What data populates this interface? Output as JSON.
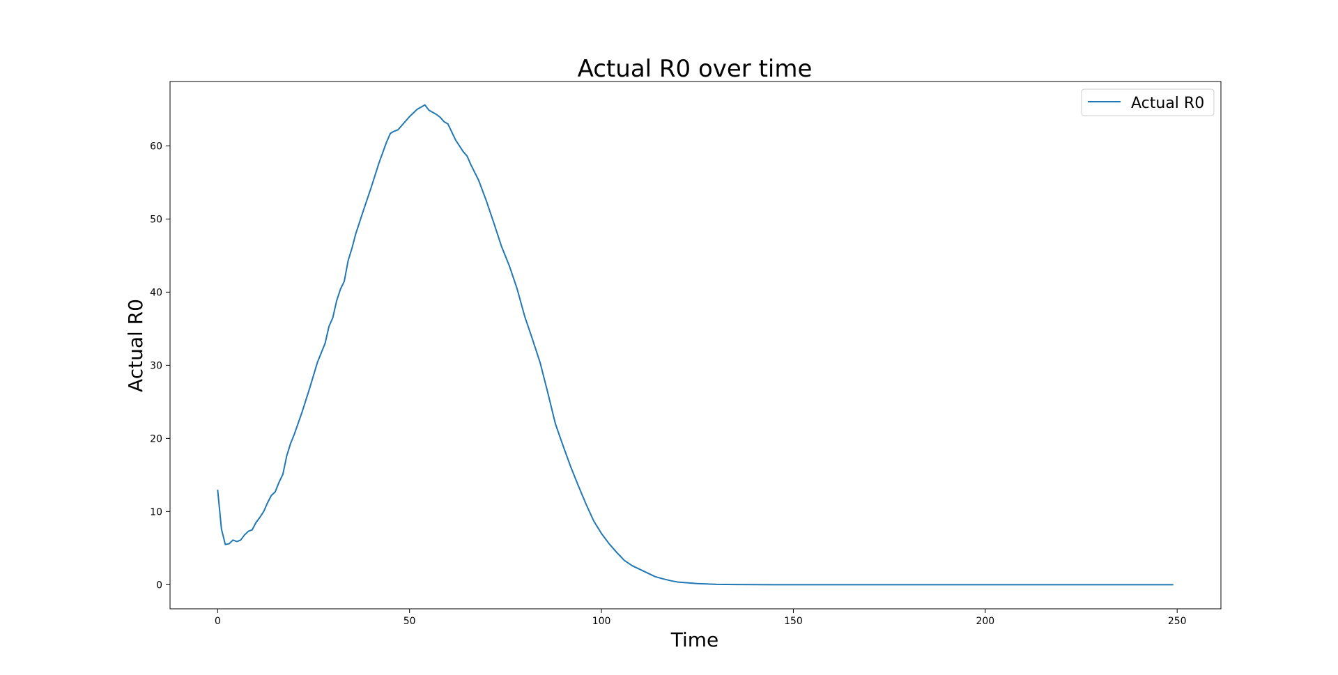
{
  "chart_data": {
    "type": "line",
    "title": "Actual R0 over time",
    "xlabel": "Time",
    "ylabel": "Actual R0",
    "xlim": [
      -12.4,
      261.4
    ],
    "ylim": [
      -3.3,
      68.8
    ],
    "xticks": [
      0,
      50,
      100,
      150,
      200,
      250
    ],
    "yticks": [
      0,
      10,
      20,
      30,
      40,
      50,
      60
    ],
    "grid": false,
    "legend_position": "top-right",
    "series": [
      {
        "name": "Actual R0",
        "color": "#1f77b4",
        "x": [
          0,
          1,
          2,
          3,
          4,
          5,
          6,
          7,
          8,
          9,
          10,
          11,
          12,
          13,
          14,
          15,
          16,
          17,
          18,
          19,
          20,
          22,
          24,
          26,
          28,
          29,
          30,
          31,
          32,
          33,
          34,
          35,
          36,
          38,
          40,
          42,
          44,
          45,
          46,
          47,
          48,
          49,
          50,
          52,
          54,
          55,
          56,
          57,
          58,
          59,
          60,
          62,
          64,
          65,
          66,
          68,
          70,
          72,
          74,
          76,
          78,
          80,
          82,
          84,
          86,
          88,
          90,
          92,
          94,
          96,
          98,
          100,
          102,
          104,
          106,
          108,
          110,
          112,
          114,
          116,
          118,
          120,
          125,
          130,
          135,
          140,
          145,
          150,
          160,
          170,
          180,
          190,
          200,
          210,
          220,
          230,
          240,
          249
        ],
        "y": [
          13.0,
          7.6,
          5.5,
          5.6,
          6.1,
          5.9,
          6.1,
          6.8,
          7.3,
          7.5,
          8.5,
          9.2,
          10.0,
          11.2,
          12.2,
          12.7,
          14.0,
          15.1,
          17.6,
          19.3,
          20.6,
          23.6,
          26.9,
          30.4,
          33.0,
          35.3,
          36.5,
          38.8,
          40.4,
          41.5,
          44.3,
          46.0,
          48.0,
          51.2,
          54.3,
          57.6,
          60.5,
          61.7,
          62.0,
          62.2,
          62.8,
          63.4,
          64.0,
          65.0,
          65.6,
          64.9,
          64.6,
          64.3,
          63.9,
          63.3,
          63.0,
          60.8,
          59.2,
          58.6,
          57.4,
          55.3,
          52.5,
          49.4,
          46.2,
          43.6,
          40.5,
          36.7,
          33.6,
          30.4,
          26.3,
          22.0,
          19.0,
          16.1,
          13.5,
          11.0,
          8.7,
          7.0,
          5.6,
          4.4,
          3.3,
          2.6,
          2.1,
          1.6,
          1.1,
          0.8,
          0.55,
          0.35,
          0.15,
          0.05,
          0.02,
          0.01,
          0.0,
          0.0,
          0.0,
          0.0,
          0.0,
          0.0,
          0.0,
          0.0,
          0.0,
          0.0,
          0.0,
          0.0
        ]
      }
    ]
  }
}
